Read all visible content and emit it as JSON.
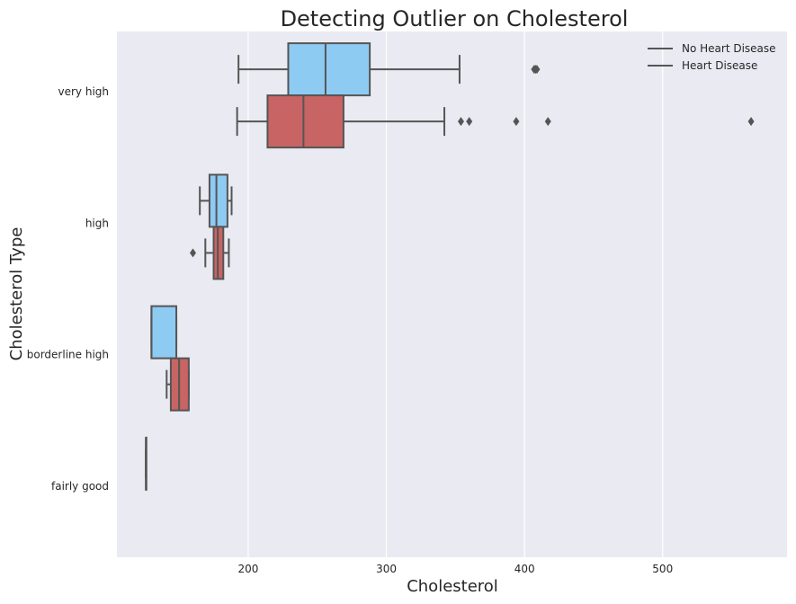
{
  "chart_data": {
    "type": "boxplot",
    "orientation": "horizontal",
    "title": "Detecting Outlier on Cholesterol",
    "xlabel": "Cholesterol",
    "ylabel": "Cholesterol Type",
    "xlim": [
      105,
      590
    ],
    "xticks": [
      200,
      300,
      400,
      500
    ],
    "categories": [
      "very high",
      "high",
      "borderline high",
      "fairly good"
    ],
    "grid": true,
    "legend_position": "top-right",
    "colors": {
      "background": "#eaeaf2",
      "grid": "#ffffff",
      "edge": "#555555",
      "no_heart_disease": "#8ecbf3",
      "heart_disease": "#c86464"
    },
    "series": [
      {
        "name": "No Heart Disease",
        "boxes": [
          {
            "category": "very high",
            "whislo": 193,
            "q1": 229,
            "med": 256,
            "q3": 288,
            "whishi": 353,
            "fliers": [
              407,
              408,
              409
            ]
          },
          {
            "category": "high",
            "whislo": 165,
            "q1": 172,
            "med": 177,
            "q3": 185,
            "whishi": 188,
            "fliers": []
          },
          {
            "category": "borderline high",
            "whislo": 130,
            "q1": 130,
            "med": 130,
            "q3": 148,
            "whishi": 148,
            "fliers": []
          },
          {
            "category": "fairly good",
            "whislo": 126,
            "q1": 126,
            "med": 126,
            "q3": 126,
            "whishi": 126,
            "fliers": []
          }
        ]
      },
      {
        "name": "Heart Disease",
        "boxes": [
          {
            "category": "very high",
            "whislo": 192,
            "q1": 214,
            "med": 240,
            "q3": 269,
            "whishi": 342,
            "fliers": [
              354,
              360,
              394,
              417,
              564
            ]
          },
          {
            "category": "high",
            "whislo": 169,
            "q1": 175,
            "med": 178,
            "q3": 182,
            "whishi": 186,
            "fliers": [
              160
            ]
          },
          {
            "category": "borderline high",
            "whislo": 141,
            "q1": 144,
            "med": 150,
            "q3": 157,
            "whishi": 157,
            "fliers": []
          }
        ]
      }
    ]
  }
}
